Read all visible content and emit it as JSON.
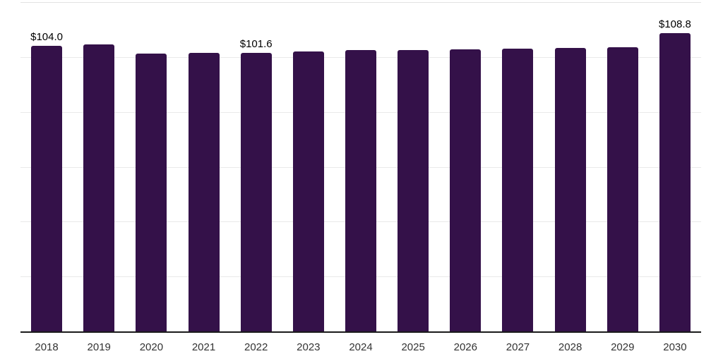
{
  "chart_data": {
    "type": "bar",
    "title": "",
    "categories": [
      "2018",
      "2019",
      "2020",
      "2021",
      "2022",
      "2023",
      "2024",
      "2025",
      "2026",
      "2027",
      "2028",
      "2029",
      "2030"
    ],
    "values": [
      104.0,
      104.7,
      101.2,
      101.4,
      101.6,
      102.1,
      102.4,
      102.6,
      102.9,
      103.1,
      103.4,
      103.6,
      108.8
    ],
    "value_labels": [
      "$104.0",
      null,
      null,
      null,
      "$101.6",
      null,
      null,
      null,
      null,
      null,
      null,
      null,
      "$108.8"
    ],
    "xlabel": "",
    "ylabel": "",
    "ylim": [
      0,
      120
    ],
    "grid": "horizontal",
    "gridline_values": [
      0,
      20,
      40,
      60,
      80,
      100,
      120
    ],
    "legend": "none",
    "colors": {
      "bar": "#341149",
      "axis_line": "#1a1a1a",
      "gridline": "#e9e9e9",
      "x_label": "#333333",
      "value_label": "#000000",
      "background": "#ffffff"
    }
  }
}
